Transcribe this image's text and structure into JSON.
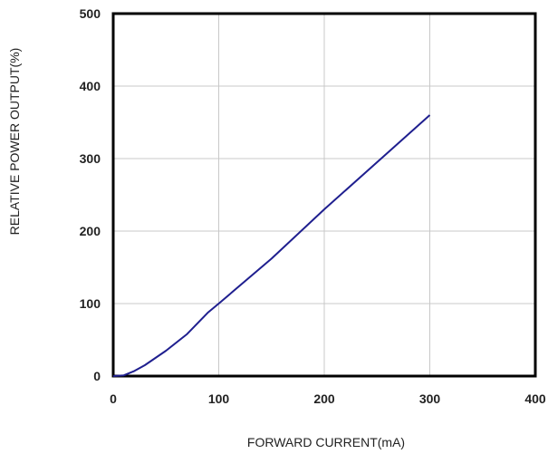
{
  "chart_data": {
    "type": "line",
    "title": "",
    "xlabel": "FORWARD CURRENT(mA)",
    "ylabel": "RELATIVE POWER OUTPUT(%)",
    "xlim": [
      0,
      400
    ],
    "ylim": [
      0,
      500
    ],
    "x_ticks": [
      "0",
      "100",
      "200",
      "300",
      "400"
    ],
    "y_ticks": [
      "0",
      "100",
      "200",
      "300",
      "400",
      "500"
    ],
    "grid": true,
    "legend": "none",
    "series": [
      {
        "color": "#1f1f8f",
        "x": [
          0,
          10,
          20,
          30,
          50,
          70,
          90,
          100,
          150,
          200,
          250,
          300
        ],
        "y": [
          0,
          1,
          7,
          15,
          35,
          58,
          88,
          100,
          162,
          230,
          295,
          360
        ]
      }
    ]
  }
}
